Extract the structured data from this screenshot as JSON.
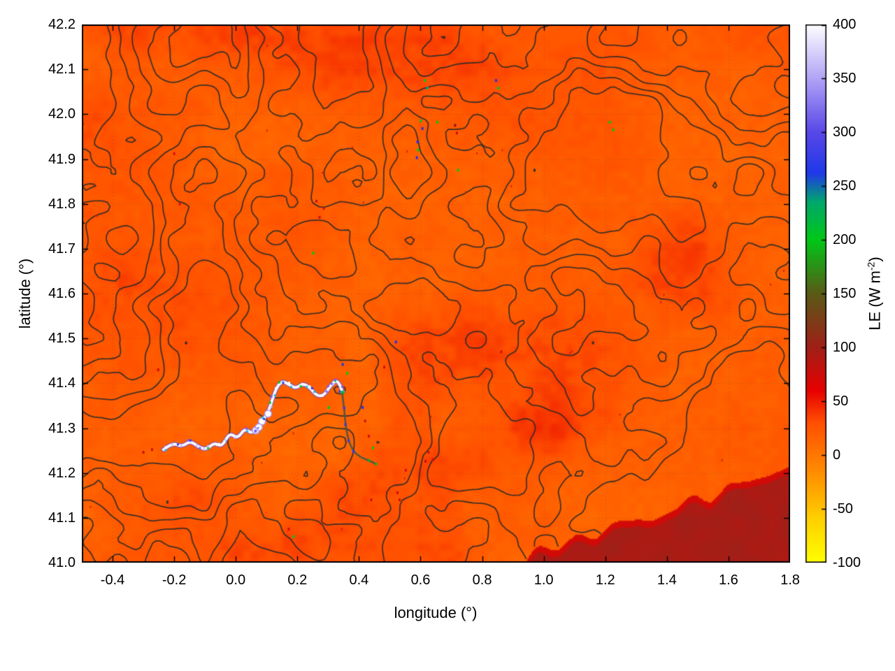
{
  "figure": {
    "background": "#ffffff"
  },
  "chart_data": {
    "type": "heatmap",
    "title": "",
    "xlabel": "longitude (°)",
    "ylabel": "latitude (°)",
    "xlim": [
      -0.5,
      1.8
    ],
    "ylim": [
      41.0,
      42.2
    ],
    "xticks": [
      -0.4,
      -0.2,
      0.0,
      0.2,
      0.4,
      0.6,
      0.8,
      1.0,
      1.2,
      1.4,
      1.6,
      1.8
    ],
    "yticks": [
      41.0,
      41.1,
      41.2,
      41.3,
      41.4,
      41.5,
      41.6,
      41.7,
      41.8,
      41.9,
      42.0,
      42.1,
      42.2
    ],
    "grid": "dotted",
    "legend_position": "none",
    "colorbar": {
      "label": "LE (W m-2)",
      "label_pre": "LE (W m",
      "label_sup": "-2",
      "label_post": ")",
      "range": [
        -100,
        400
      ],
      "ticks": [
        -100,
        -50,
        0,
        50,
        100,
        150,
        200,
        250,
        300,
        350,
        400
      ],
      "palette": [
        [
          -100,
          "#ffff00"
        ],
        [
          -60,
          "#ffd200"
        ],
        [
          -20,
          "#ff9400"
        ],
        [
          0,
          "#ff7800"
        ],
        [
          30,
          "#ff5000"
        ],
        [
          60,
          "#e80000"
        ],
        [
          100,
          "#a02018"
        ],
        [
          150,
          "#5a5a16"
        ],
        [
          200,
          "#00c818"
        ],
        [
          235,
          "#00a86c"
        ],
        [
          262,
          "#2038e8"
        ],
        [
          300,
          "#5948e8"
        ],
        [
          350,
          "#b2a4f6"
        ],
        [
          400,
          "#ffffff"
        ]
      ]
    },
    "field": {
      "units": "W m-2",
      "background_LE_range": [
        5,
        40
      ],
      "hot_patch_LE": 55,
      "hot_regions": [
        [
          0.55,
          42.12,
          0.2,
          0.012,
          15
        ],
        [
          0.05,
          42.18,
          0.06,
          0.004,
          10
        ],
        [
          1.0,
          41.47,
          0.1,
          0.005,
          8
        ],
        [
          0.18,
          41.04,
          0.1,
          0.003,
          8
        ],
        [
          0.62,
          41.23,
          0.03,
          0.004,
          8
        ],
        [
          -0.35,
          41.58,
          0.05,
          0.01,
          6
        ]
      ],
      "sea": {
        "LE": 96,
        "coast_LE": 72,
        "lon_start": 0.92,
        "slope": 0.25,
        "description": "dark-red low-LE sea surface in bottom-right corner"
      },
      "river": {
        "LE_range": [
          250,
          400
        ],
        "main_path": [
          [
            -0.235,
            41.252
          ],
          [
            -0.205,
            41.268
          ],
          [
            -0.175,
            41.258
          ],
          [
            -0.148,
            41.272
          ],
          [
            -0.122,
            41.258
          ],
          [
            -0.095,
            41.252
          ],
          [
            -0.07,
            41.268
          ],
          [
            -0.045,
            41.258
          ],
          [
            -0.02,
            41.29
          ],
          [
            0.005,
            41.276
          ],
          [
            0.03,
            41.3
          ],
          [
            0.05,
            41.288
          ],
          [
            0.068,
            41.298
          ],
          [
            0.088,
            41.318
          ],
          [
            0.105,
            41.335
          ],
          [
            0.118,
            41.362
          ],
          [
            0.132,
            41.39
          ],
          [
            0.15,
            41.405
          ],
          [
            0.172,
            41.398
          ],
          [
            0.195,
            41.388
          ],
          [
            0.218,
            41.4
          ],
          [
            0.242,
            41.39
          ],
          [
            0.262,
            41.372
          ],
          [
            0.285,
            41.372
          ],
          [
            0.305,
            41.392
          ],
          [
            0.325,
            41.408
          ],
          [
            0.34,
            41.395
          ],
          [
            0.345,
            41.38
          ]
        ],
        "lower_path": [
          [
            0.345,
            41.38
          ],
          [
            0.352,
            41.345
          ],
          [
            0.356,
            41.308
          ],
          [
            0.366,
            41.272
          ],
          [
            0.382,
            41.248
          ],
          [
            0.405,
            41.235
          ],
          [
            0.432,
            41.228
          ],
          [
            0.455,
            41.22
          ]
        ],
        "pools": [
          [
            0.065,
            41.295
          ],
          [
            0.085,
            41.315
          ],
          [
            0.105,
            41.332
          ],
          [
            0.075,
            41.302
          ]
        ],
        "dab_colors": [
          "#2a3bf0",
          "#7a5cff",
          "#ffffff",
          "#cfc8ff",
          "#2bb4e8",
          "#00c818"
        ]
      },
      "contours": {
        "color": "#2a2a2a",
        "levels": [
          0.4,
          0.47,
          0.54,
          0.61,
          0.68
        ],
        "description": "terrain elevation contour overlay"
      },
      "specks": [
        [
          0.615,
          42.075,
          "g"
        ],
        [
          0.622,
          42.058,
          "c"
        ],
        [
          0.6,
          41.985,
          "g"
        ],
        [
          0.606,
          41.968,
          "b"
        ],
        [
          0.655,
          41.982,
          "g"
        ],
        [
          0.59,
          41.938,
          "b"
        ],
        [
          0.592,
          41.92,
          "g"
        ],
        [
          0.588,
          41.903,
          "b"
        ],
        [
          0.712,
          41.975,
          "d"
        ],
        [
          0.718,
          41.958,
          "r"
        ],
        [
          0.845,
          42.075,
          "b"
        ],
        [
          0.852,
          42.058,
          "g"
        ],
        [
          1.215,
          41.982,
          "g"
        ],
        [
          1.226,
          41.965,
          "g"
        ],
        [
          0.722,
          41.875,
          "g"
        ],
        [
          0.97,
          41.875,
          "k"
        ],
        [
          -0.2,
          41.912,
          "r"
        ],
        [
          -0.182,
          41.8,
          "r"
        ],
        [
          0.262,
          41.806,
          "r"
        ],
        [
          0.286,
          41.79,
          "r"
        ],
        [
          0.272,
          41.77,
          "r"
        ],
        [
          0.252,
          41.69,
          "g"
        ],
        [
          0.52,
          41.492,
          "b"
        ],
        [
          -0.252,
          41.43,
          "r"
        ],
        [
          -0.3,
          41.246,
          "r"
        ],
        [
          -0.272,
          41.252,
          "r"
        ],
        [
          -0.222,
          41.135,
          "k"
        ],
        [
          0.172,
          41.075,
          "r"
        ],
        [
          0.188,
          41.058,
          "g"
        ],
        [
          0.44,
          41.14,
          "r"
        ],
        [
          0.525,
          41.156,
          "r"
        ],
        [
          0.532,
          41.14,
          "r"
        ],
        [
          0.626,
          41.246,
          "r"
        ],
        [
          0.64,
          41.23,
          "r"
        ],
        [
          0.616,
          41.226,
          "r"
        ],
        [
          0.552,
          41.206,
          "r"
        ],
        [
          1.16,
          41.49,
          "k"
        ],
        [
          0.862,
          41.47,
          "r"
        ],
        [
          0.42,
          41.316,
          "r"
        ],
        [
          0.432,
          41.282,
          "r"
        ],
        [
          0.446,
          41.256,
          "g"
        ],
        [
          0.412,
          41.346,
          "b"
        ],
        [
          0.362,
          41.422,
          "g"
        ],
        [
          0.347,
          41.442,
          "b"
        ],
        [
          0.302,
          41.346,
          "g"
        ],
        [
          0.482,
          41.436,
          "r"
        ]
      ],
      "speck_colors": {
        "g": "#00c818",
        "b": "#2030f0",
        "c": "#00a8a8",
        "r": "#d01010",
        "d": "#8c1616",
        "k": "#303030"
      }
    }
  }
}
